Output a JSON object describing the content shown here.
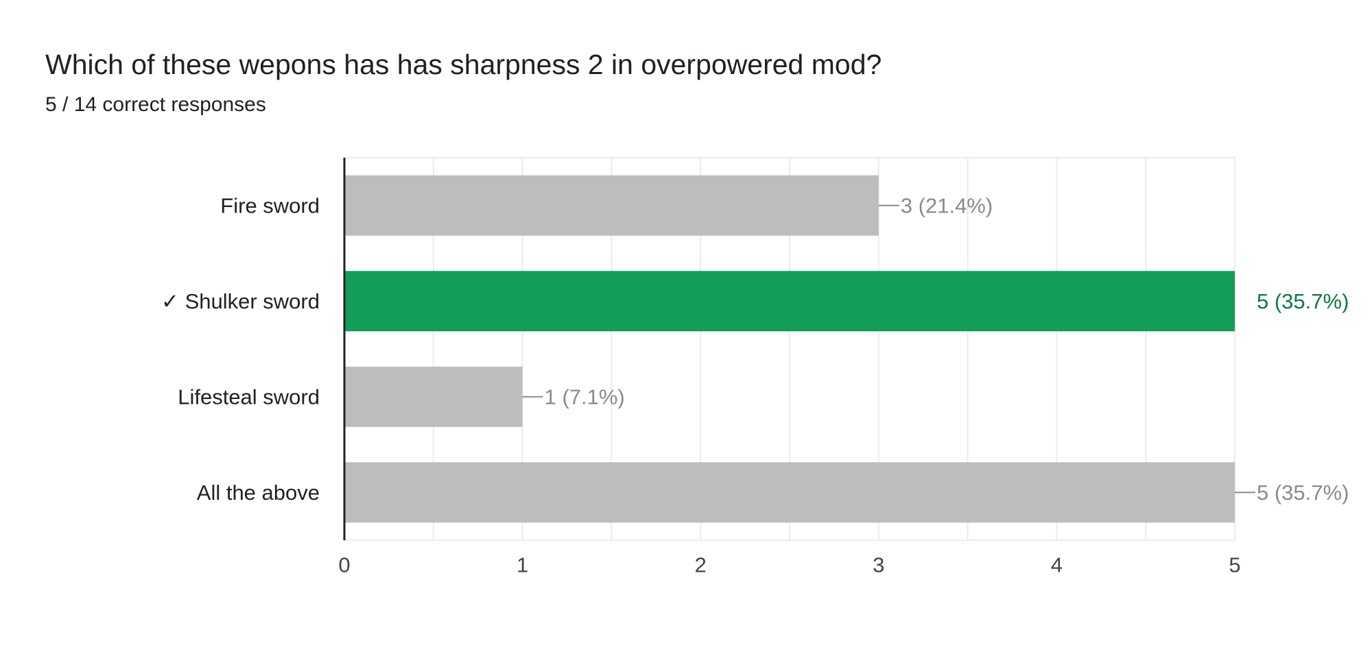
{
  "question": {
    "title": "Which of these wepons has has sharpness 2 in overpowered mod?",
    "subtitle": "5 / 14 correct responses"
  },
  "colors": {
    "bar_default": "#bdbdbd",
    "bar_correct": "#129d58",
    "label_default": "#202124",
    "data_label_default": "#8a8a8a",
    "data_label_correct": "#0b7a3f",
    "gridline": "#ebebeb",
    "axis": "#202124",
    "tick_label": "#444444"
  },
  "chart_data": {
    "type": "bar",
    "orientation": "horizontal",
    "categories": [
      "Fire sword",
      "✓ Shulker sword",
      "Lifesteal sword",
      "All the above"
    ],
    "values": [
      3,
      5,
      1,
      5
    ],
    "data_labels": [
      "3 (21.4%)",
      "5 (35.7%)",
      "1 (7.1%)",
      "5 (35.7%)"
    ],
    "correct": [
      false,
      true,
      false,
      false
    ],
    "xlim": [
      0,
      5
    ],
    "x_ticks": [
      "0",
      "1",
      "2",
      "3",
      "4",
      "5"
    ],
    "grid": true,
    "legend": "none"
  }
}
